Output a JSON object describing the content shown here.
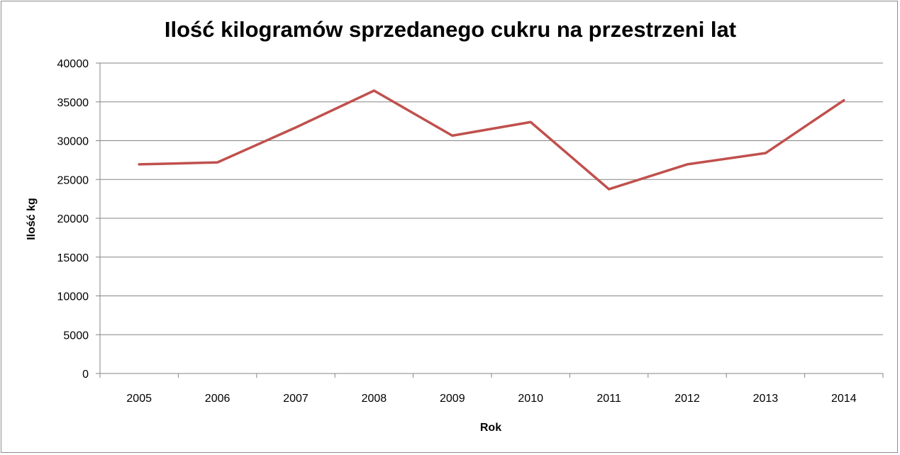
{
  "chart_data": {
    "type": "line",
    "title": "Ilość kilogramów sprzedanego cukru na przestrzeni lat",
    "xlabel": "Rok",
    "ylabel": "Ilość kg",
    "categories": [
      "2005",
      "2006",
      "2007",
      "2008",
      "2009",
      "2010",
      "2011",
      "2012",
      "2013",
      "2014"
    ],
    "series": [
      {
        "values": [
          26950,
          27200,
          31700,
          36450,
          30650,
          32400,
          23750,
          26950,
          28400,
          35200
        ],
        "color": "#c0504d"
      }
    ],
    "ylim": [
      0,
      40000
    ],
    "yticks": [
      "0",
      "5000",
      "10000",
      "15000",
      "20000",
      "25000",
      "30000",
      "35000",
      "40000"
    ],
    "grid": true,
    "legend": "none"
  }
}
